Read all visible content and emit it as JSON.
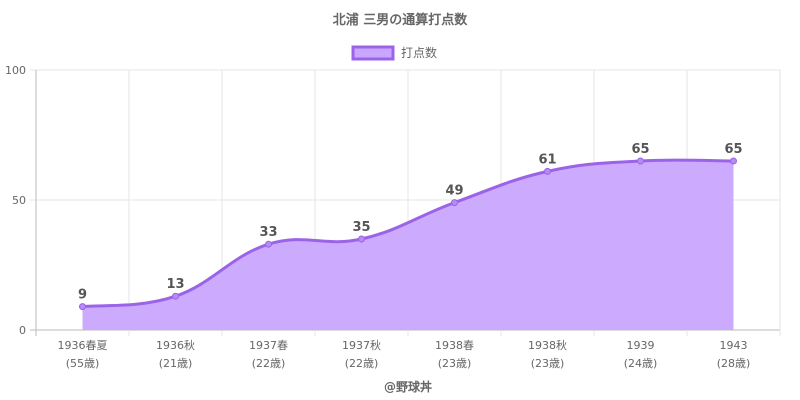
{
  "chart_data": {
    "type": "area",
    "title": "北浦 三男の通算打点数",
    "categories": [
      [
        "1936春夏",
        "(55歳)"
      ],
      [
        "1936秋",
        "(21歳)"
      ],
      [
        "1937春",
        "(22歳)"
      ],
      [
        "1937秋",
        "(22歳)"
      ],
      [
        "1938春",
        "(23歳)"
      ],
      [
        "1938秋",
        "(23歳)"
      ],
      [
        "1939",
        "(24歳)"
      ],
      [
        "1943",
        "(28歳)"
      ]
    ],
    "series": [
      {
        "name": "打点数",
        "values": [
          9,
          13,
          33,
          35,
          49,
          61,
          65,
          65
        ]
      }
    ],
    "yticks": [
      0,
      50,
      100
    ],
    "ylim": [
      0,
      100
    ],
    "grid": true,
    "legend_position": "top-center",
    "colors": {
      "fill": "#c9a6ff",
      "stroke": "#9b63e8",
      "point": "#b58cf2",
      "grid": "#e6e6e6",
      "axis": "#bbbbbb"
    },
    "credit": "@野球丼"
  }
}
